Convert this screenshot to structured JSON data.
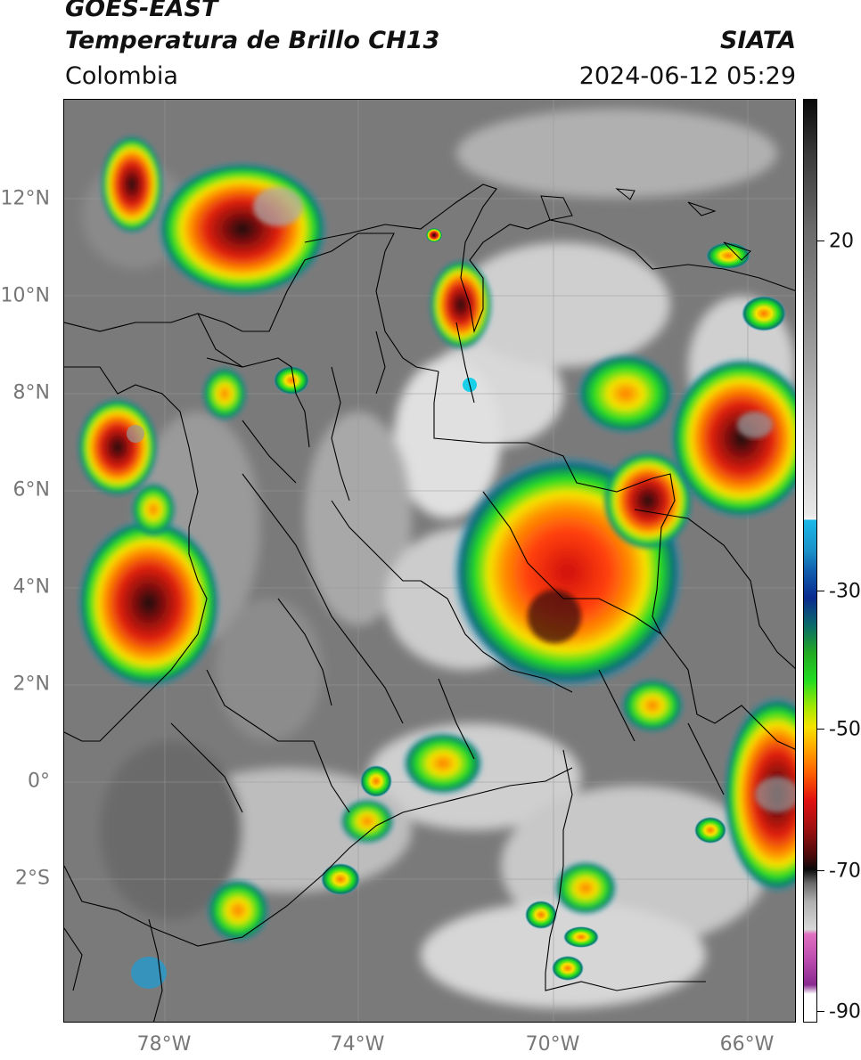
{
  "header": {
    "satellite": "GOES-EAST",
    "product": "Temperatura de Brillo CH13",
    "region": "Colombia",
    "agency": "SIATA",
    "datetime": "2024-06-12 05:29"
  },
  "map": {
    "lat_ticks": [
      "12°N",
      "10°N",
      "8°N",
      "6°N",
      "4°N",
      "2°N",
      "0°",
      "2°S"
    ],
    "lon_ticks": [
      "78°W",
      "74°W",
      "70°W",
      "66°W"
    ],
    "colors": {
      "warm_gray": "#808080",
      "cloud_light": "#e8e8e8",
      "cold_green": "#22dd22",
      "cold_yellow": "#f5e400",
      "cold_red": "#d81010",
      "core_dark": "#2a0a0a"
    }
  },
  "colorbar": {
    "labels": [
      "20",
      "-30",
      "-50",
      "-70",
      "-90"
    ]
  }
}
